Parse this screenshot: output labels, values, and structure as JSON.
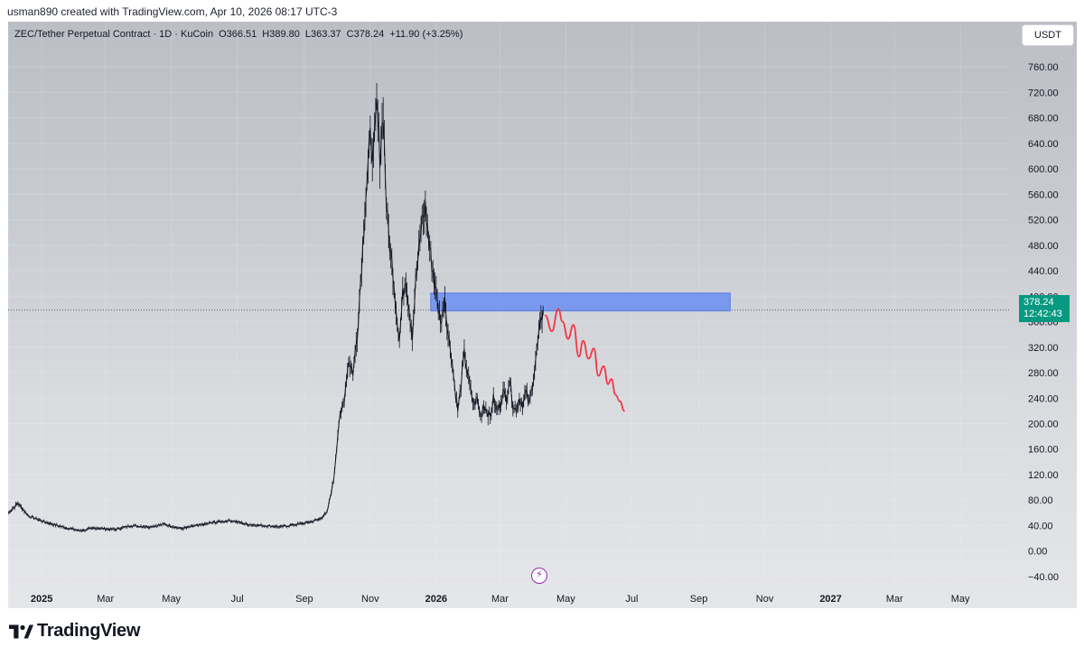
{
  "header": {
    "caption": "usman890 created with TradingView.com, Apr 10, 2026 08:17 UTC-3"
  },
  "legend": {
    "symbol": "ZEC/Tether Perpetual Contract · 1D · KuCoin",
    "open": "O366.51",
    "high": "H389.80",
    "low": "L363.37",
    "close": "C378.24",
    "change": "+11.90 (+3.25%)"
  },
  "currency_button": {
    "label": "USDT"
  },
  "price_tag": {
    "price": "378.24",
    "countdown": "12:42:43"
  },
  "brand": {
    "name": "TradingView",
    "logo_icon": "tradingview-logo-icon"
  },
  "colors": {
    "candles": "#131722",
    "zone": "#6b8ef2",
    "projection": "#f23645",
    "price_tag": "#089981",
    "flash_icon": "#9c27b0"
  },
  "chart_data": {
    "type": "line",
    "ylim": [
      -50,
      780
    ],
    "xlim": [
      "2024-12-01",
      "2027-06-15"
    ],
    "yticks": [
      760,
      720,
      680,
      640,
      600,
      560,
      520,
      480,
      440,
      400,
      360,
      320,
      280,
      240,
      200,
      160,
      120,
      80,
      40,
      0,
      -40
    ],
    "ytick_labels": [
      "760.00",
      "720.00",
      "680.00",
      "640.00",
      "600.00",
      "560.00",
      "520.00",
      "480.00",
      "440.00",
      "400.00",
      "360.00",
      "320.00",
      "280.00",
      "240.00",
      "200.00",
      "160.00",
      "120.00",
      "80.00",
      "40.00",
      "0.00",
      "−40.00"
    ],
    "xticks": [
      "2025-01-01",
      "2025-03-01",
      "2025-05-01",
      "2025-07-01",
      "2025-09-01",
      "2025-11-01",
      "2026-01-01",
      "2026-03-01",
      "2026-05-01",
      "2026-07-01",
      "2026-09-01",
      "2026-11-01",
      "2027-01-01",
      "2027-03-01",
      "2027-05-01"
    ],
    "xtick_labels": [
      "2025",
      "Mar",
      "May",
      "Jul",
      "Sep",
      "Nov",
      "2026",
      "Mar",
      "May",
      "Jul",
      "Sep",
      "Nov",
      "2027",
      "Mar",
      "May"
    ],
    "bold_xticks": [
      "2025",
      "2026",
      "2027"
    ],
    "last_price": 378.24,
    "series": [
      {
        "values_x": [
          "2024-12-01",
          "2024-12-10",
          "2024-12-20",
          "2025-01-05",
          "2025-01-20",
          "2025-02-05",
          "2025-02-20",
          "2025-03-10",
          "2025-03-25",
          "2025-04-10",
          "2025-04-25",
          "2025-05-10",
          "2025-05-25",
          "2025-06-10",
          "2025-06-25",
          "2025-07-10",
          "2025-07-25",
          "2025-08-10",
          "2025-08-25",
          "2025-09-05",
          "2025-09-15",
          "2025-09-22",
          "2025-09-28",
          "2025-10-03",
          "2025-10-08",
          "2025-10-12",
          "2025-10-16",
          "2025-10-20",
          "2025-10-24",
          "2025-10-28",
          "2025-11-01",
          "2025-11-04",
          "2025-11-07",
          "2025-11-10",
          "2025-11-13",
          "2025-11-16",
          "2025-11-19",
          "2025-11-22",
          "2025-11-25",
          "2025-11-28",
          "2025-12-01",
          "2025-12-04",
          "2025-12-07",
          "2025-12-10",
          "2025-12-13",
          "2025-12-16",
          "2025-12-19",
          "2025-12-22",
          "2025-12-25",
          "2025-12-28",
          "2025-12-31",
          "2026-01-03",
          "2026-01-06",
          "2026-01-09",
          "2026-01-12",
          "2026-01-15",
          "2026-01-18",
          "2026-01-21",
          "2026-01-24",
          "2026-01-27",
          "2026-01-30",
          "2026-02-02",
          "2026-02-05",
          "2026-02-08",
          "2026-02-11",
          "2026-02-14",
          "2026-02-17",
          "2026-02-20",
          "2026-02-23",
          "2026-02-26",
          "2026-03-01",
          "2026-03-04",
          "2026-03-07",
          "2026-03-10",
          "2026-03-13",
          "2026-03-16",
          "2026-03-19",
          "2026-03-22",
          "2026-03-25",
          "2026-03-28",
          "2026-03-31",
          "2026-04-03",
          "2026-04-06",
          "2026-04-10"
        ],
        "values": [
          60,
          75,
          55,
          45,
          38,
          32,
          36,
          34,
          40,
          38,
          42,
          35,
          40,
          45,
          48,
          42,
          40,
          38,
          42,
          45,
          50,
          60,
          110,
          200,
          240,
          300,
          280,
          340,
          450,
          560,
          650,
          620,
          700,
          620,
          690,
          540,
          480,
          440,
          380,
          330,
          400,
          430,
          380,
          340,
          420,
          470,
          520,
          540,
          490,
          450,
          420,
          380,
          360,
          400,
          340,
          310,
          260,
          220,
          260,
          310,
          280,
          250,
          230,
          240,
          210,
          230,
          220,
          210,
          240,
          220,
          230,
          250,
          240,
          270,
          230,
          220,
          240,
          230,
          250,
          230,
          260,
          300,
          340,
          378
        ]
      }
    ],
    "resistance_zone": {
      "x_start": "2025-12-27",
      "x_end": "2026-09-30",
      "y_low": 377,
      "y_high": 405
    },
    "projection": {
      "x": [
        "2026-04-12",
        "2026-04-18",
        "2026-04-24",
        "2026-04-28",
        "2026-05-03",
        "2026-05-08",
        "2026-05-13",
        "2026-05-17",
        "2026-05-22",
        "2026-05-27",
        "2026-05-31",
        "2026-06-05",
        "2026-06-09",
        "2026-06-12",
        "2026-06-16",
        "2026-06-20",
        "2026-06-24"
      ],
      "y": [
        370,
        345,
        380,
        360,
        333,
        355,
        305,
        330,
        302,
        318,
        275,
        290,
        262,
        270,
        245,
        235,
        220
      ]
    }
  }
}
